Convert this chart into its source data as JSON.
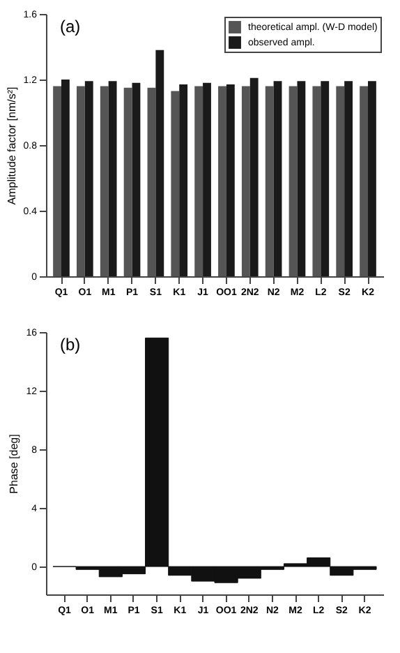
{
  "chart_data": [
    {
      "type": "bar",
      "annotations": [
        "(a)"
      ],
      "ylabel": "Amplitude factor [nm/s²]",
      "categories": [
        "Q1",
        "O1",
        "M1",
        "P1",
        "S1",
        "K1",
        "J1",
        "OO1",
        "2N2",
        "N2",
        "M2",
        "L2",
        "S2",
        "K2"
      ],
      "series": [
        {
          "name": "theoretical ampl. (W-D model)",
          "color": "#555555",
          "values": [
            1.16,
            1.16,
            1.16,
            1.15,
            1.15,
            1.13,
            1.16,
            1.16,
            1.16,
            1.16,
            1.16,
            1.16,
            1.16,
            1.16
          ]
        },
        {
          "name": "observed ampl.",
          "color": "#1a1a1a",
          "values": [
            1.2,
            1.19,
            1.19,
            1.18,
            1.38,
            1.17,
            1.18,
            1.17,
            1.21,
            1.19,
            1.19,
            1.19,
            1.19,
            1.19
          ]
        }
      ],
      "ylim": [
        0,
        1.6
      ],
      "yticks": [
        0,
        0.4,
        0.8,
        1.2,
        1.6
      ],
      "legend": "top right"
    },
    {
      "type": "bar",
      "annotations": [
        "(b)"
      ],
      "ylabel": "Phase [deg]",
      "categories": [
        "Q1",
        "O1",
        "M1",
        "P1",
        "S1",
        "K1",
        "J1",
        "OO1",
        "2N2",
        "N2",
        "M2",
        "L2",
        "S2",
        "K2"
      ],
      "values": [
        0,
        -0.2,
        -0.7,
        -0.5,
        15.6,
        -0.6,
        -1.0,
        -1.1,
        -0.8,
        -0.2,
        0.2,
        0.6,
        -0.6,
        -0.2
      ],
      "color": "#111111",
      "ylim": [
        -1.9,
        16
      ],
      "yticks": [
        0,
        4,
        8,
        12,
        16
      ]
    }
  ]
}
